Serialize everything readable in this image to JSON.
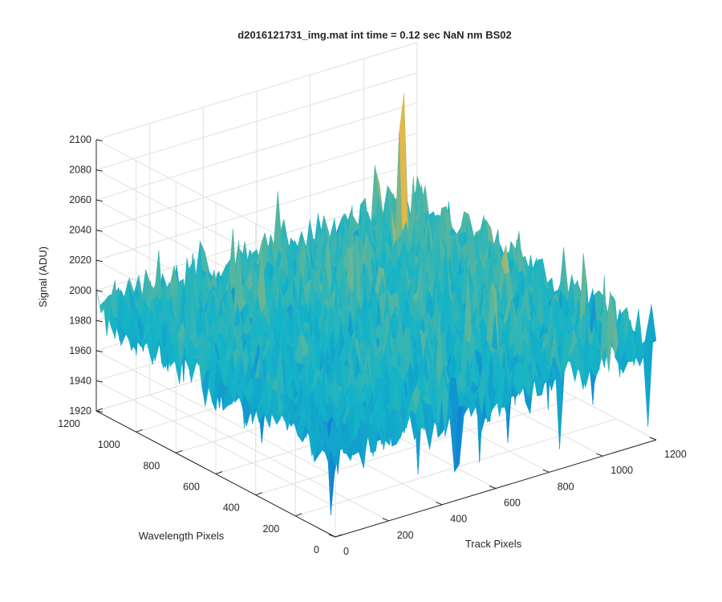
{
  "chart_data": {
    "type": "surface",
    "title": "d2016121731_img.mat int time = 0.12 sec  NaN nm BS02",
    "xlabel": "Track Pixels",
    "ylabel": "Wavelength Pixels",
    "zlabel": "Signal (ADU)",
    "xlim": [
      0,
      1200
    ],
    "ylim": [
      0,
      1200
    ],
    "zlim": [
      1920,
      2100
    ],
    "xticks": [
      "0",
      "200",
      "400",
      "600",
      "800",
      "1000",
      "1200"
    ],
    "yticks": [
      "0",
      "200",
      "400",
      "600",
      "800",
      "1000",
      "1200"
    ],
    "zticks": [
      "1920",
      "1940",
      "1960",
      "1980",
      "2000",
      "2020",
      "2040",
      "2060",
      "2080",
      "2100"
    ],
    "grid": true,
    "colormap": "parula",
    "colors": {
      "low": "#0f5cdd",
      "mid": "#14b4c8",
      "high": "#e1b94a",
      "axis": "#262626",
      "grid": "#e0e0e0"
    },
    "surface_summary": {
      "mean_signal": 1985,
      "noise_spread": 20,
      "max_peak": 2090,
      "min_dip": 1925,
      "peak_location": [
        1000,
        1000
      ]
    }
  }
}
